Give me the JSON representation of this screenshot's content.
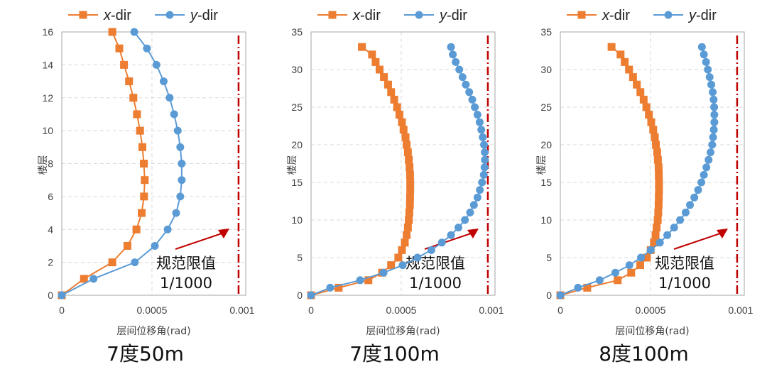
{
  "colors": {
    "x_dir": "#ED7D31",
    "y_dir": "#5B9BD5",
    "limit": "#C00000",
    "grid": "#d9d9d9",
    "frame": "#a6a6a6"
  },
  "chart_data": [
    {
      "type": "line",
      "title": "7度50m",
      "xlabel": "层间位移角(rad)",
      "ylabel": "楼层",
      "xlim": [
        0,
        0.00102
      ],
      "ylim": [
        0,
        16
      ],
      "xticks": [
        0,
        0.0005,
        0.001
      ],
      "xtick_labels": [
        "0",
        "0.0005",
        "0.001"
      ],
      "yticks": [
        0,
        2,
        4,
        6,
        8,
        10,
        12,
        14,
        16
      ],
      "grid": true,
      "legend": "top",
      "annotation": {
        "line1": "规范限值",
        "line2": "1/1000",
        "limit_value": 0.001
      },
      "series": [
        {
          "name": "x-dir",
          "prefix": "x",
          "suffix": "-dir",
          "marker": "square",
          "floors": [
            0,
            1,
            2,
            3,
            4,
            5,
            6,
            7,
            8,
            9,
            10,
            11,
            12,
            13,
            14,
            15,
            16
          ],
          "values": [
            0,
            0.000123,
            0.00028,
            0.000364,
            0.000414,
            0.000443,
            0.000456,
            0.00046,
            0.000455,
            0.000447,
            0.000434,
            0.000417,
            0.000397,
            0.000373,
            0.000345,
            0.000319,
            0.00028
          ]
        },
        {
          "name": "y-dir",
          "prefix": "y",
          "suffix": "-dir",
          "marker": "circle",
          "floors": [
            0,
            1,
            2,
            3,
            4,
            5,
            6,
            7,
            8,
            9,
            10,
            11,
            12,
            13,
            14,
            15,
            16
          ],
          "values": [
            0,
            0.000176,
            0.000405,
            0.000516,
            0.000587,
            0.000634,
            0.000657,
            0.000665,
            0.000665,
            0.000657,
            0.000643,
            0.000623,
            0.000598,
            0.000565,
            0.000525,
            0.000472,
            0.000402
          ]
        }
      ]
    },
    {
      "type": "line",
      "title": "7度100m",
      "xlabel": "层间位移角(rad)",
      "ylabel": "楼层",
      "xlim": [
        0,
        0.00102
      ],
      "ylim": [
        0,
        35
      ],
      "xticks": [
        0,
        0.0005,
        0.001
      ],
      "xtick_labels": [
        "0",
        "0.0005",
        "0.001"
      ],
      "yticks": [
        0,
        5,
        10,
        15,
        20,
        25,
        30,
        35
      ],
      "grid": true,
      "legend": "top",
      "annotation": {
        "line1": "规范限值",
        "line2": "1/1000",
        "limit_value": 0.001
      },
      "series": [
        {
          "name": "x-dir",
          "prefix": "x",
          "suffix": "-dir",
          "marker": "square",
          "floors": [
            0,
            1,
            2,
            3,
            4,
            5,
            6,
            7,
            8,
            9,
            10,
            11,
            12,
            13,
            14,
            15,
            16,
            17,
            18,
            19,
            20,
            21,
            22,
            23,
            24,
            25,
            26,
            27,
            28,
            29,
            30,
            31,
            32,
            33
          ],
          "values": [
            0,
            0.000153,
            0.000318,
            0.000394,
            0.000444,
            0.000484,
            0.000504,
            0.00052,
            0.00053,
            0.000537,
            0.000542,
            0.000545,
            0.000548,
            0.000549,
            0.00055,
            0.00055,
            0.000549,
            0.000546,
            0.000542,
            0.000537,
            0.00053,
            0.000524,
            0.000513,
            0.000504,
            0.00049,
            0.000477,
            0.000461,
            0.000444,
            0.000427,
            0.000404,
            0.00038,
            0.000358,
            0.000338,
            0.000282
          ]
        },
        {
          "name": "y-dir",
          "prefix": "y",
          "suffix": "-dir",
          "marker": "circle",
          "floors": [
            0,
            1,
            2,
            3,
            4,
            5,
            6,
            7,
            8,
            9,
            10,
            11,
            12,
            13,
            14,
            15,
            16,
            17,
            18,
            19,
            20,
            21,
            22,
            23,
            24,
            25,
            26,
            27,
            28,
            29,
            30,
            31,
            32,
            33
          ],
          "values": [
            0,
            0.000106,
            0.000272,
            0.000402,
            0.000508,
            0.00059,
            0.000667,
            0.000725,
            0.000776,
            0.000817,
            0.000853,
            0.000882,
            0.000903,
            0.000923,
            0.000936,
            0.000948,
            0.000958,
            0.000962,
            0.000964,
            0.000963,
            0.000959,
            0.000952,
            0.000944,
            0.000935,
            0.000923,
            0.000908,
            0.000894,
            0.000877,
            0.000858,
            0.00084,
            0.000822,
            0.000802,
            0.000786,
            0.000776
          ]
        }
      ]
    },
    {
      "type": "line",
      "title": "8度100m",
      "xlabel": "层间位移角(rad)",
      "ylabel": "楼层",
      "xlim": [
        0,
        0.00102
      ],
      "ylim": [
        0,
        35
      ],
      "xticks": [
        0,
        0.0005,
        0.001
      ],
      "xtick_labels": [
        "0",
        "0.0005",
        "0.001"
      ],
      "yticks": [
        0,
        5,
        10,
        15,
        20,
        25,
        30,
        35
      ],
      "grid": true,
      "legend": "top",
      "annotation": {
        "line1": "规范限值",
        "line2": "1/1000",
        "limit_value": 0.001
      },
      "series": [
        {
          "name": "x-dir",
          "prefix": "x",
          "suffix": "-dir",
          "marker": "square",
          "floors": [
            0,
            1,
            2,
            3,
            4,
            5,
            6,
            7,
            8,
            9,
            10,
            11,
            12,
            13,
            14,
            15,
            16,
            17,
            18,
            19,
            20,
            21,
            22,
            23,
            24,
            25,
            26,
            27,
            28,
            29,
            30,
            31,
            32,
            33
          ],
          "values": [
            0,
            0.000149,
            0.000318,
            0.000393,
            0.000443,
            0.00048,
            0.000501,
            0.000519,
            0.000528,
            0.000534,
            0.00054,
            0.000543,
            0.000545,
            0.000546,
            0.000547,
            0.000547,
            0.000546,
            0.000545,
            0.000541,
            0.000537,
            0.00053,
            0.000524,
            0.000515,
            0.000504,
            0.000491,
            0.000477,
            0.000462,
            0.000444,
            0.000424,
            0.000403,
            0.000381,
            0.000357,
            0.000334,
            0.000284
          ]
        },
        {
          "name": "y-dir",
          "prefix": "y",
          "suffix": "-dir",
          "marker": "circle",
          "floors": [
            0,
            1,
            2,
            3,
            4,
            5,
            6,
            7,
            8,
            9,
            10,
            11,
            12,
            13,
            14,
            15,
            16,
            17,
            18,
            19,
            20,
            21,
            22,
            23,
            24,
            25,
            26,
            27,
            28,
            29,
            30,
            31,
            32,
            33
          ],
          "values": [
            0,
            9.8e-05,
            0.000218,
            0.000305,
            0.000383,
            0.000447,
            0.000501,
            0.000552,
            0.000593,
            0.000631,
            0.000664,
            0.000695,
            0.000719,
            0.000743,
            0.000764,
            0.000782,
            0.000796,
            0.00081,
            0.000822,
            0.000833,
            0.000842,
            0.000847,
            0.000851,
            0.000854,
            0.000854,
            0.000853,
            0.00085,
            0.000845,
            0.000837,
            0.000828,
            0.000818,
            0.000808,
            0.000796,
            0.000785
          ]
        }
      ]
    }
  ]
}
